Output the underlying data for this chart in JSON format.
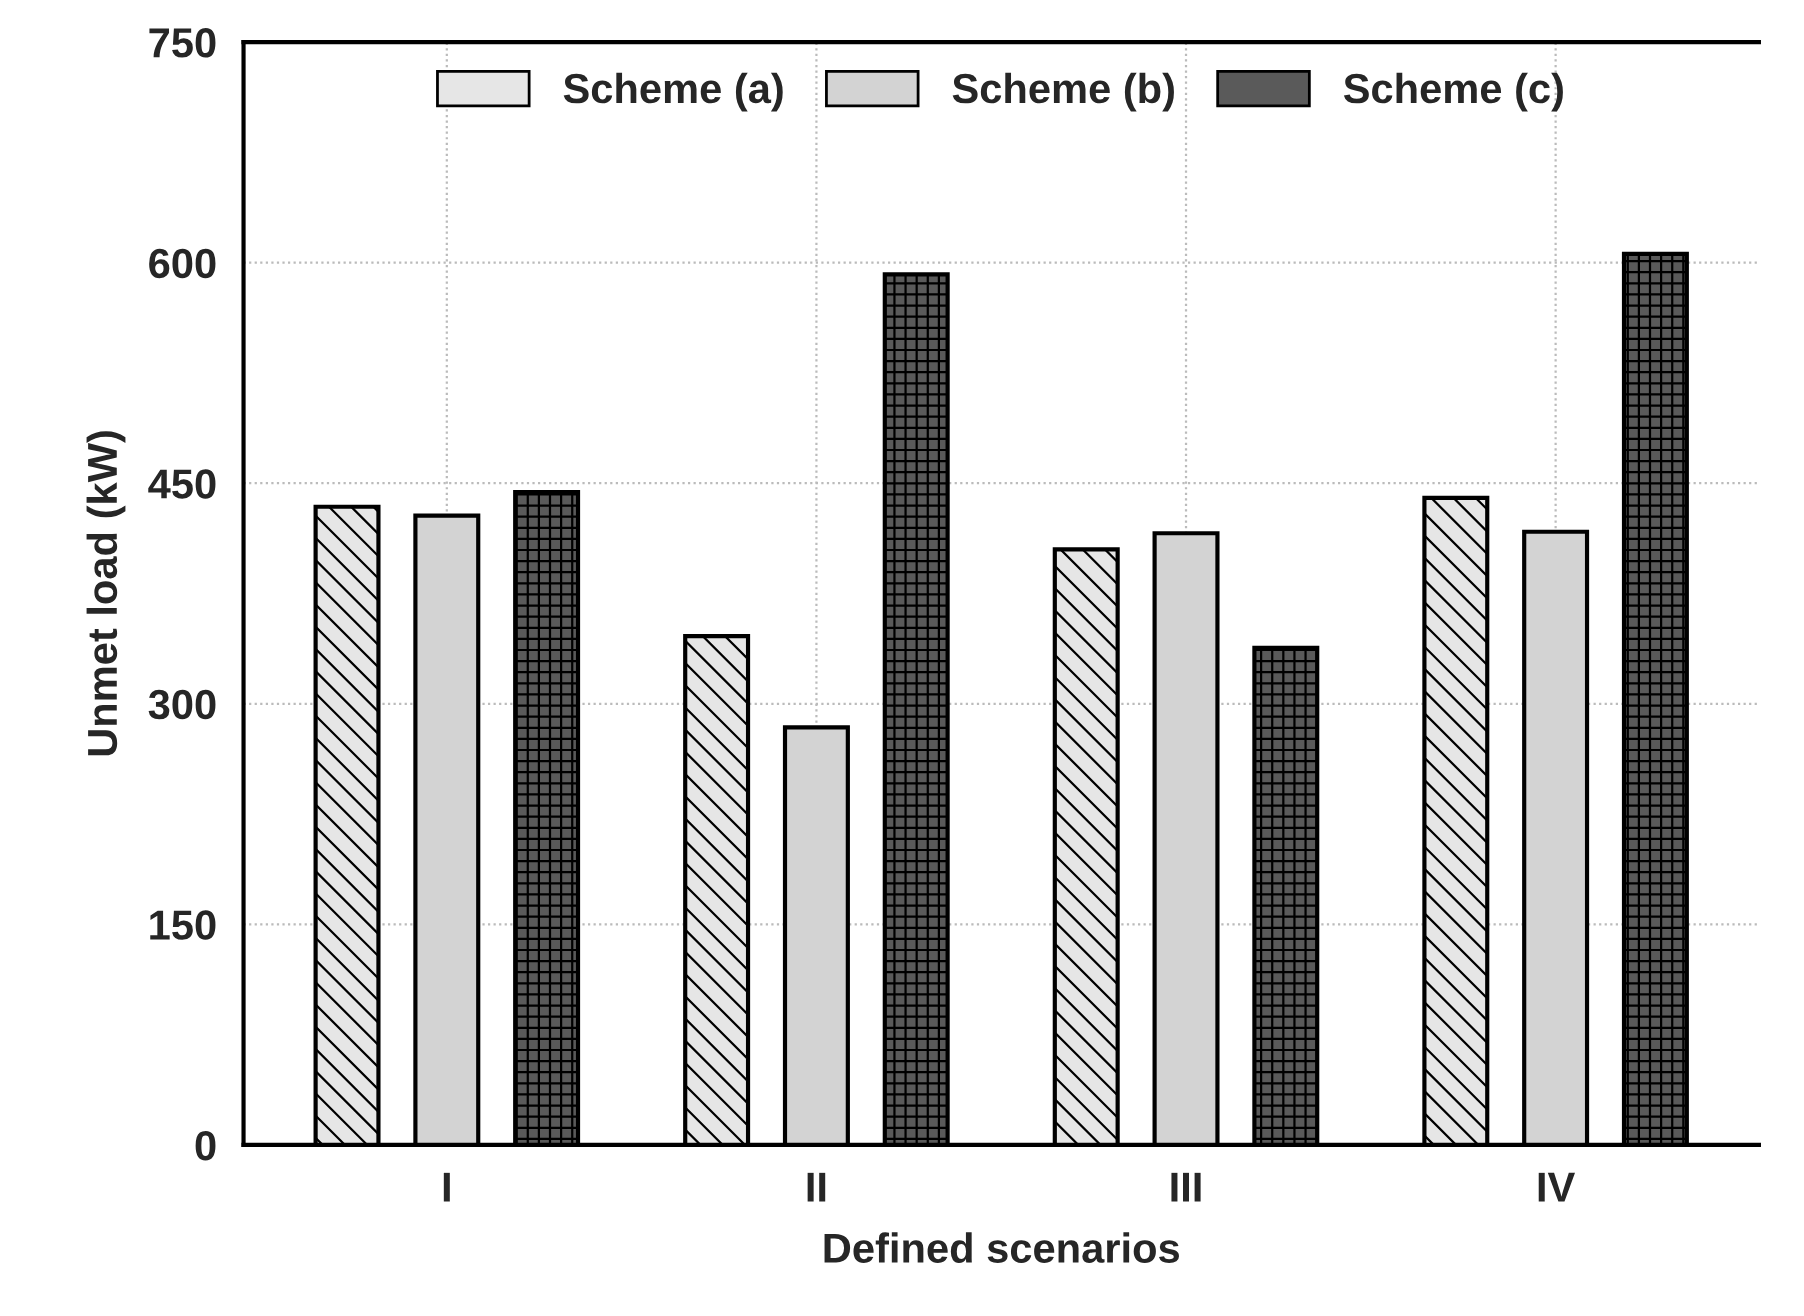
{
  "chart_data": {
    "type": "bar",
    "xlabel": "Defined scenarios",
    "ylabel": "Unmet load (kW)",
    "categories": [
      "I",
      "II",
      "III",
      "IV"
    ],
    "series": [
      {
        "name": "Scheme (a)",
        "color": "#e6e6e6",
        "values": [
          434,
          346,
          405,
          440
        ]
      },
      {
        "name": "Scheme (b)",
        "color": "#d3d3d3",
        "values": [
          428,
          284,
          416,
          417
        ]
      },
      {
        "name": "Scheme (c)",
        "color": "#5a5a5a",
        "values": [
          444,
          592,
          338,
          606
        ]
      }
    ],
    "ylim": [
      0,
      750
    ],
    "yticks": [
      0,
      150,
      300,
      450,
      600,
      750
    ],
    "grid": true,
    "legend": "top"
  }
}
